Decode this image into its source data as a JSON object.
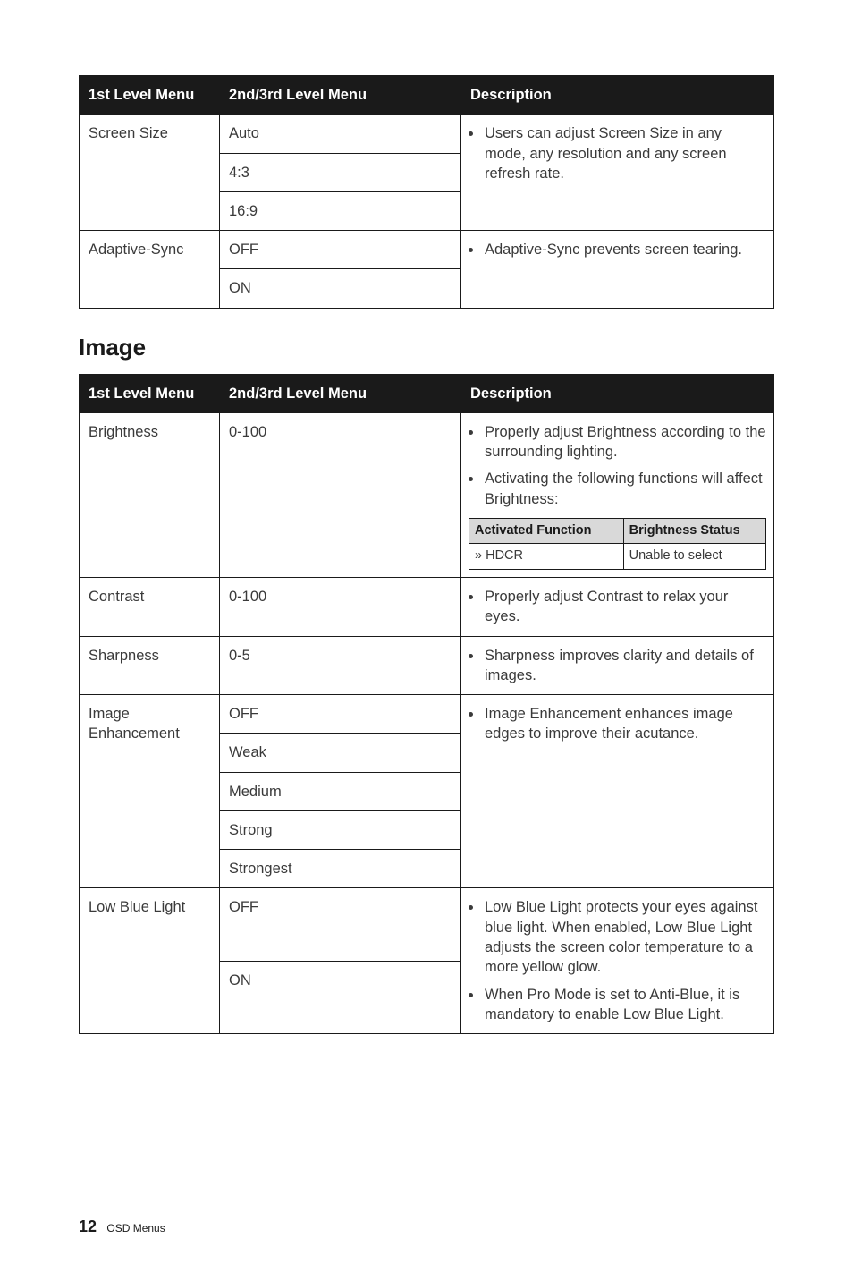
{
  "table1": {
    "headers": [
      "1st Level Menu",
      "2nd/3rd Level Menu",
      "Description"
    ],
    "rows": {
      "screenSize": {
        "label": "Screen Size",
        "options": [
          "Auto",
          "4:3",
          "16:9"
        ],
        "desc": "Users can adjust Screen Size in any mode, any resolution and any screen refresh rate."
      },
      "adaptiveSync": {
        "label": "Adaptive-Sync",
        "options": [
          "OFF",
          "ON"
        ],
        "desc": "Adaptive-Sync prevents screen tearing."
      }
    }
  },
  "sectionTitle": "Image",
  "table2": {
    "headers": [
      "1st Level Menu",
      "2nd/3rd Level Menu",
      "Description"
    ],
    "brightness": {
      "label": "Brightness",
      "range": "0-100",
      "desc1": "Properly adjust Brightness according to the surrounding lighting.",
      "desc2": "Activating the following functions will affect Brightness:",
      "inner": {
        "headers": [
          "Activated Function",
          "Brightness Status"
        ],
        "row": [
          "» HDCR",
          "Unable to select"
        ]
      }
    },
    "contrast": {
      "label": "Contrast",
      "range": "0-100",
      "desc": "Properly adjust Contrast to relax your eyes."
    },
    "sharpness": {
      "label": "Sharpness",
      "range": "0-5",
      "desc": "Sharpness improves clarity and details of images."
    },
    "imageEnhancement": {
      "label": "Image Enhancement",
      "options": [
        "OFF",
        "Weak",
        "Medium",
        "Strong",
        "Strongest"
      ],
      "desc": "Image Enhancement enhances image edges to improve their acutance."
    },
    "lowBlueLight": {
      "label": "Low Blue Light",
      "options": [
        "OFF",
        "ON"
      ],
      "desc1": "Low Blue Light protects your eyes against blue light. When enabled, Low Blue Light adjusts the screen color temperature to a more yellow glow.",
      "desc2": "When Pro Mode is set to Anti-Blue, it is mandatory to enable Low Blue Light."
    }
  },
  "footer": {
    "pageNum": "12",
    "section": "OSD Menus"
  }
}
